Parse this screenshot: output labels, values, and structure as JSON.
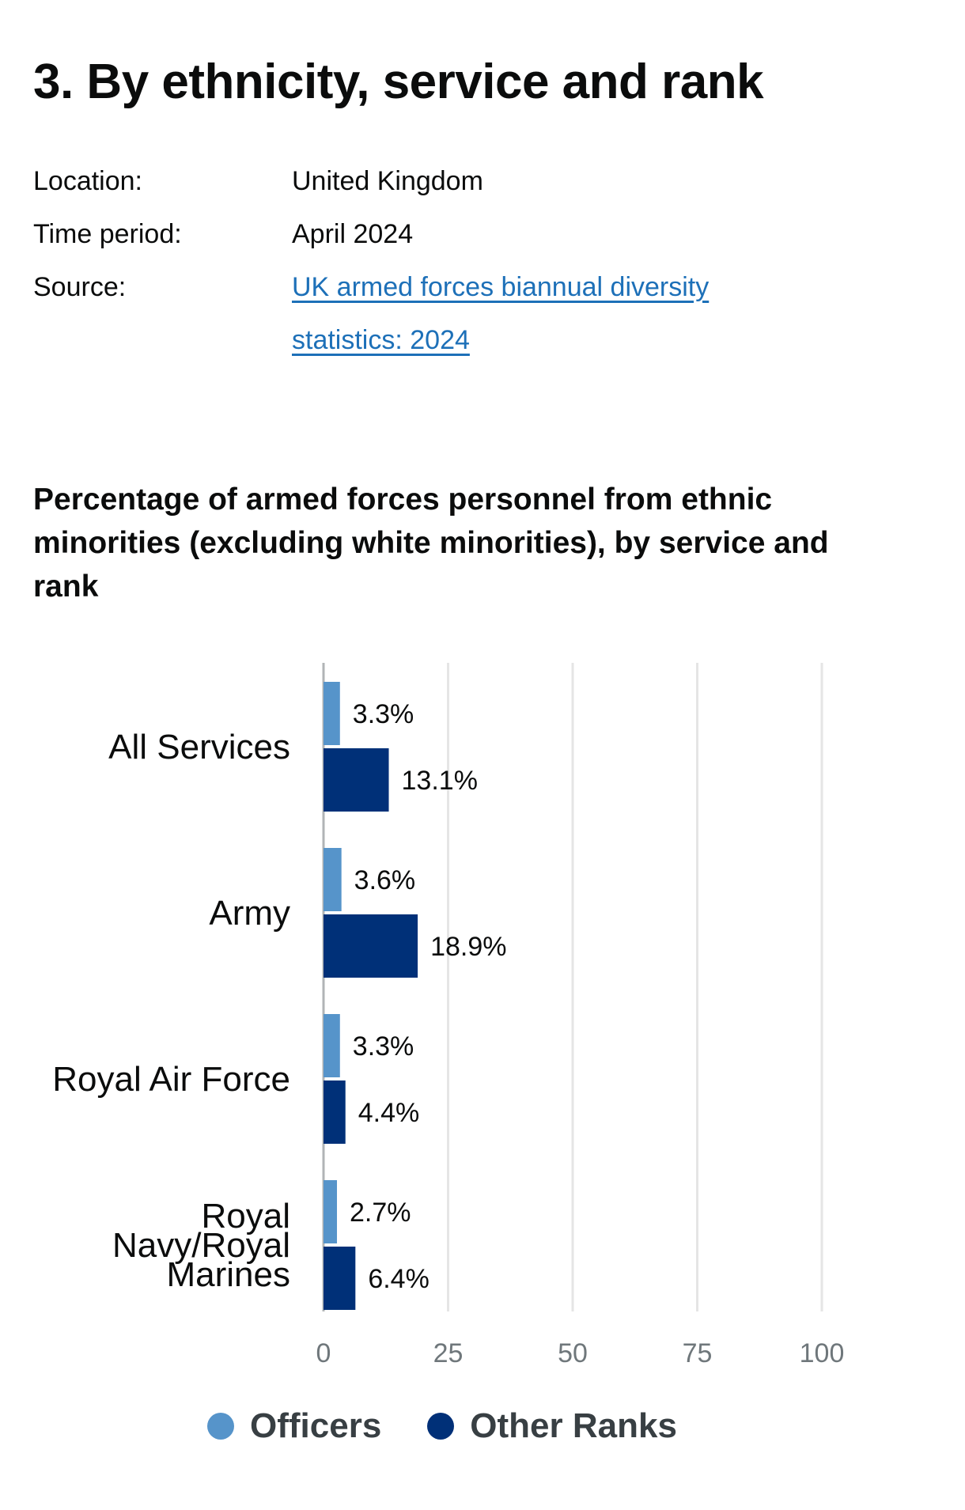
{
  "heading": "3. By ethnicity, service and rank",
  "meta": {
    "location_label": "Location:",
    "location_value": "United Kingdom",
    "time_label": "Time period:",
    "time_value": "April 2024",
    "source_label": "Source:",
    "source_line1": "UK armed forces biannual diversity",
    "source_line2": "statistics: 2024"
  },
  "colors": {
    "officers": "#5694ca",
    "other_ranks": "#003078",
    "grid": "#e5e5e5",
    "axis": "#b1b4b6"
  },
  "chart_data": {
    "type": "bar",
    "orientation": "horizontal",
    "title": "Percentage of armed forces personnel from ethnic minorities (excluding white minorities), by service and rank",
    "categories": [
      [
        "All Services"
      ],
      [
        "Army"
      ],
      [
        "Royal Air Force"
      ],
      [
        "Royal",
        "Navy/Royal",
        "Marines"
      ]
    ],
    "series": [
      {
        "name": "Officers",
        "values": [
          3.3,
          3.6,
          3.3,
          2.7
        ],
        "labels": [
          "3.3%",
          "3.6%",
          "3.3%",
          "2.7%"
        ]
      },
      {
        "name": "Other Ranks",
        "values": [
          13.1,
          18.9,
          4.4,
          6.4
        ],
        "labels": [
          "13.1%",
          "18.9%",
          "4.4%",
          "6.4%"
        ]
      }
    ],
    "xlim": [
      0,
      100
    ],
    "xticks": [
      0,
      25,
      50,
      75,
      100
    ],
    "grid": true,
    "legend_position": "bottom"
  }
}
